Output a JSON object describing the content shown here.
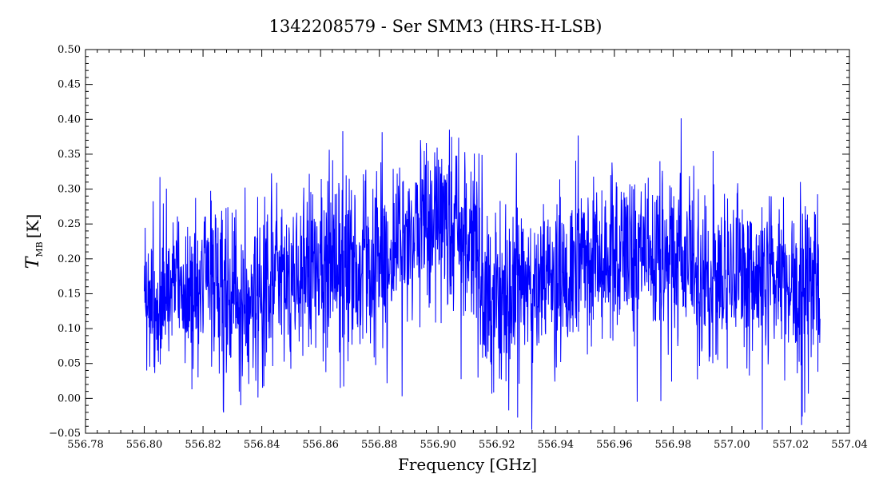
{
  "chart_data": {
    "type": "line",
    "title": "1342208579 - Ser SMM3 (HRS-H-LSB)",
    "xlabel": "Frequency [GHz]",
    "ylabel": {
      "symbol": "T",
      "subscript": "MB",
      "unit": "[K]"
    },
    "xlim": [
      556.78,
      557.04
    ],
    "ylim": [
      -0.05,
      0.5
    ],
    "xticks": [
      556.78,
      556.8,
      556.82,
      556.84,
      556.86,
      556.88,
      556.9,
      556.92,
      556.94,
      556.96,
      556.98,
      557.0,
      557.02,
      557.04
    ],
    "xtick_labels": [
      "556.78",
      "556.80",
      "556.82",
      "556.84",
      "556.86",
      "556.88",
      "556.90",
      "556.92",
      "556.94",
      "556.96",
      "556.98",
      "557.00",
      "557.02",
      "557.04"
    ],
    "yticks": [
      -0.05,
      0.0,
      0.05,
      0.1,
      0.15,
      0.2,
      0.25,
      0.3,
      0.35,
      0.4,
      0.45,
      0.5
    ],
    "ytick_labels": [
      "−0.05",
      "0.00",
      "0.05",
      "0.10",
      "0.15",
      "0.20",
      "0.25",
      "0.30",
      "0.35",
      "0.40",
      "0.45",
      "0.50"
    ],
    "grid": false,
    "series": [
      {
        "color": "#0000ff",
        "x": [
          556.8,
          556.803,
          556.806,
          556.809,
          556.812,
          556.815,
          556.818,
          556.821,
          556.824,
          556.827,
          556.83,
          556.833,
          556.836,
          556.839,
          556.842,
          556.845,
          556.848,
          556.851,
          556.854,
          556.857,
          556.86,
          556.863,
          556.866,
          556.869,
          556.872,
          556.875,
          556.878,
          556.881,
          556.884,
          556.887,
          556.89,
          556.893,
          556.896,
          556.899,
          556.902,
          556.905,
          556.908,
          556.911,
          556.914,
          556.917,
          556.92,
          556.923,
          556.926,
          556.929,
          556.932,
          556.935,
          556.938,
          556.941,
          556.944,
          556.947,
          556.95,
          556.953,
          556.956,
          556.959,
          556.962,
          556.965,
          556.968,
          556.971,
          556.974,
          556.977,
          556.98,
          556.983,
          556.986,
          556.989,
          556.992,
          556.995,
          556.998,
          557.001,
          557.004,
          557.007,
          557.01,
          557.013,
          557.016,
          557.019,
          557.022,
          557.025,
          557.028,
          557.03
        ],
        "y": [
          0.17,
          0.15,
          0.16,
          0.15,
          0.17,
          0.14,
          0.16,
          0.18,
          0.15,
          0.17,
          0.16,
          0.13,
          0.14,
          0.15,
          0.17,
          0.16,
          0.18,
          0.17,
          0.19,
          0.18,
          0.17,
          0.19,
          0.18,
          0.2,
          0.19,
          0.21,
          0.2,
          0.22,
          0.21,
          0.23,
          0.22,
          0.24,
          0.23,
          0.26,
          0.24,
          0.25,
          0.23,
          0.24,
          0.2,
          0.15,
          0.14,
          0.15,
          0.16,
          0.17,
          0.15,
          0.18,
          0.17,
          0.19,
          0.18,
          0.2,
          0.19,
          0.18,
          0.2,
          0.19,
          0.21,
          0.2,
          0.19,
          0.21,
          0.2,
          0.19,
          0.18,
          0.2,
          0.19,
          0.18,
          0.19,
          0.17,
          0.18,
          0.19,
          0.17,
          0.18,
          0.17,
          0.16,
          0.18,
          0.16,
          0.15,
          0.17,
          0.16,
          0.15
        ]
      }
    ]
  }
}
